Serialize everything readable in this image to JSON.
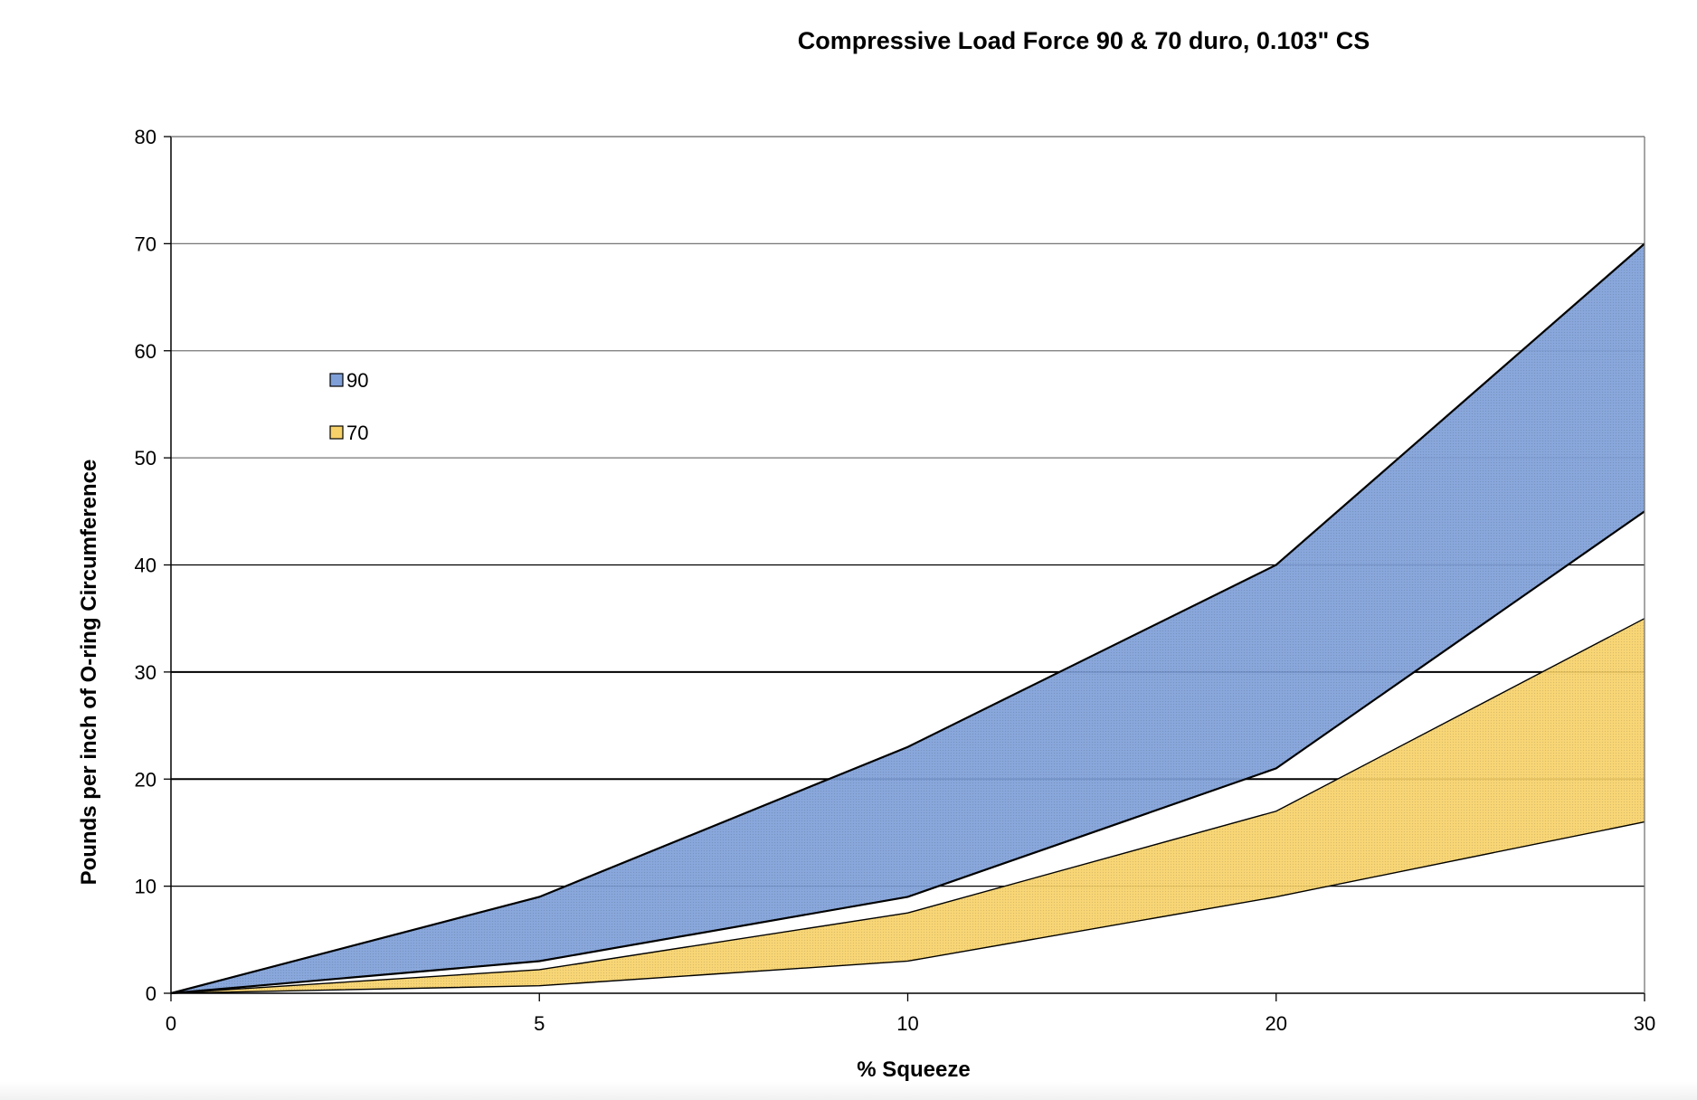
{
  "chart_data": {
    "type": "area",
    "title": "Compressive Load Force 90 & 70 duro, 0.103\" CS",
    "xlabel": "% Squeeze",
    "ylabel": "Pounds per inch of O-ring Circumference",
    "categories": [
      "0",
      "5",
      "10",
      "20",
      "30"
    ],
    "ylim": [
      0,
      80
    ],
    "yticks": [
      "0",
      "10",
      "20",
      "30",
      "40",
      "50",
      "60",
      "70",
      "80"
    ],
    "grid": true,
    "legend_position": "upper-left",
    "series": [
      {
        "name": "90",
        "color": "#7f9fd8",
        "upper": [
          0,
          9,
          23,
          40,
          70
        ],
        "lower": [
          0,
          3,
          9,
          21,
          45
        ]
      },
      {
        "name": "70",
        "color": "#f7d26a",
        "upper": [
          0,
          2.2,
          7.5,
          17,
          35
        ],
        "lower": [
          0,
          0.7,
          3,
          9,
          16
        ]
      }
    ]
  }
}
